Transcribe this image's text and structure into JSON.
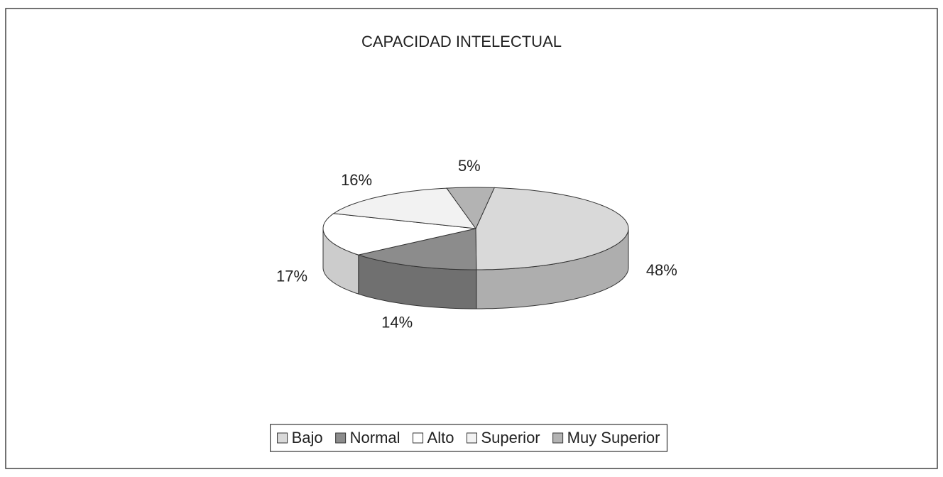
{
  "chart_data": {
    "type": "pie3d",
    "title": "CAPACIDAD INTELECTUAL",
    "categories": [
      "Bajo",
      "Normal",
      "Alto",
      "Superior",
      "Muy Superior"
    ],
    "values": [
      48,
      14,
      17,
      16,
      5
    ],
    "value_labels": [
      "48%",
      "14%",
      "17%",
      "16%",
      "5%"
    ],
    "colors": [
      "#d9d9d9",
      "#8c8c8c",
      "#ffffff",
      "#f2f2f2",
      "#b3b3b3"
    ],
    "legend": "bottom"
  }
}
